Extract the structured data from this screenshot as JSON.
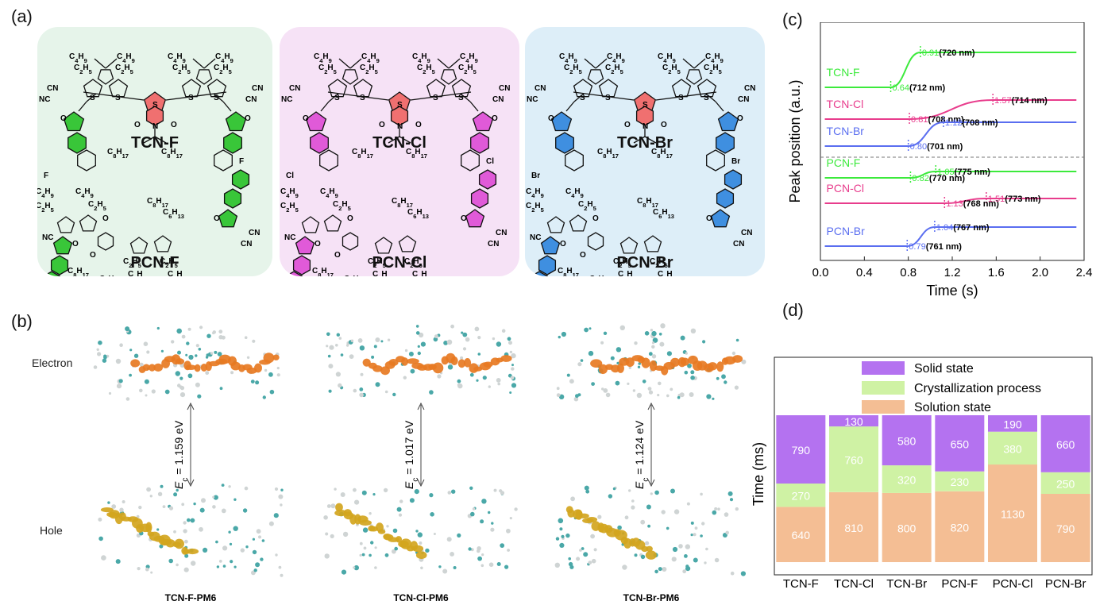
{
  "panels": {
    "a": "(a)",
    "b": "(b)",
    "c": "(c)",
    "d": "(d)"
  },
  "molecules": {
    "top": [
      "TCN-F",
      "TCN-Cl",
      "TCN-Br"
    ],
    "bottom": [
      "PCN-F",
      "PCN-Cl",
      "PCN-Br"
    ],
    "box_colors": [
      "#e6f4ea",
      "#f6e2f6",
      "#ddeef8"
    ],
    "accent_colors": [
      "#39c639",
      "#e05ad8",
      "#3f8fe0"
    ],
    "halogens": [
      "F",
      "Cl",
      "Br"
    ],
    "substituents": {
      "butyl": "C4H9",
      "ethyl": "C2H5",
      "octyl": "C8H17",
      "hexyl": "C6H13",
      "cn": "CN",
      "nc": "NC",
      "o": "O",
      "s": "S",
      "n": "N"
    }
  },
  "calc": {
    "row_labels": [
      "Electron",
      "Hole"
    ],
    "energies": [
      "1.159 eV",
      "1.017 eV",
      "1.124 eV"
    ],
    "ec_symbol": "E",
    "ec_sub": "c",
    "names": [
      "TCN-F-PM6",
      "TCN-Cl-PM6",
      "TCN-Br-PM6"
    ]
  },
  "chart_data": [
    {
      "type": "line",
      "panel": "(c)",
      "xlabel": "Time (s)",
      "ylabel": "Peak position (a.u.)",
      "xlim": [
        0.0,
        2.4
      ],
      "xticks": [
        "0.0",
        "0.4",
        "0.8",
        "1.2",
        "1.6",
        "2.0",
        "2.4"
      ],
      "series": [
        {
          "name": "TCN-F",
          "color": "#3cea3c",
          "t_start": 0.64,
          "t_end": 0.91,
          "label_start": "0.64",
          "label_end": "0.91",
          "nm_start": "(712 nm)",
          "nm_end": "(720 nm)"
        },
        {
          "name": "TCN-Cl",
          "color": "#e83c8c",
          "t_start": 0.81,
          "t_end": 1.57,
          "label_start": "0.81",
          "label_end": "1.57",
          "nm_start": "(708 nm)",
          "nm_end": "(714 nm)"
        },
        {
          "name": "TCN-Br",
          "color": "#5a6ef0",
          "t_start": 0.8,
          "t_end": 1.12,
          "label_start": "0.80",
          "label_end": "1.12",
          "nm_start": "(701 nm)",
          "nm_end": "(708 nm)"
        },
        {
          "name": "PCN-F",
          "color": "#3cea3c",
          "t_start": 0.82,
          "t_end": 1.05,
          "label_start": "0.82",
          "label_end": "1.05",
          "nm_start": "(770 nm)",
          "nm_end": "(775 nm)"
        },
        {
          "name": "PCN-Cl",
          "color": "#e83c8c",
          "t_start": 1.13,
          "t_end": 1.51,
          "label_start": "1.13",
          "label_end": "1.51",
          "nm_start": "(768 nm)",
          "nm_end": "(773 nm)"
        },
        {
          "name": "PCN-Br",
          "color": "#5a6ef0",
          "t_start": 0.79,
          "t_end": 1.04,
          "label_start": "0.79",
          "label_end": "1.04",
          "nm_start": "(761 nm)",
          "nm_end": "(767 nm)"
        }
      ]
    },
    {
      "type": "bar",
      "stacked": true,
      "panel": "(d)",
      "ylabel": "Time (ms)",
      "categories": [
        "TCN-F",
        "TCN-Cl",
        "TCN-Br",
        "PCN-F",
        "PCN-Cl",
        "PCN-Br"
      ],
      "series": [
        {
          "name": "Solution state",
          "color": "#f4be94",
          "values": [
            640,
            810,
            800,
            820,
            1130,
            790
          ]
        },
        {
          "name": "Crystallization process",
          "color": "#cff2a4",
          "values": [
            270,
            760,
            320,
            230,
            380,
            250
          ]
        },
        {
          "name": "Solid state",
          "color": "#b472f0",
          "values": [
            790,
            130,
            580,
            650,
            190,
            660
          ]
        }
      ],
      "legend": [
        "Solid state",
        "Crystallization process",
        "Solution state"
      ],
      "legend_placement": "top"
    }
  ]
}
